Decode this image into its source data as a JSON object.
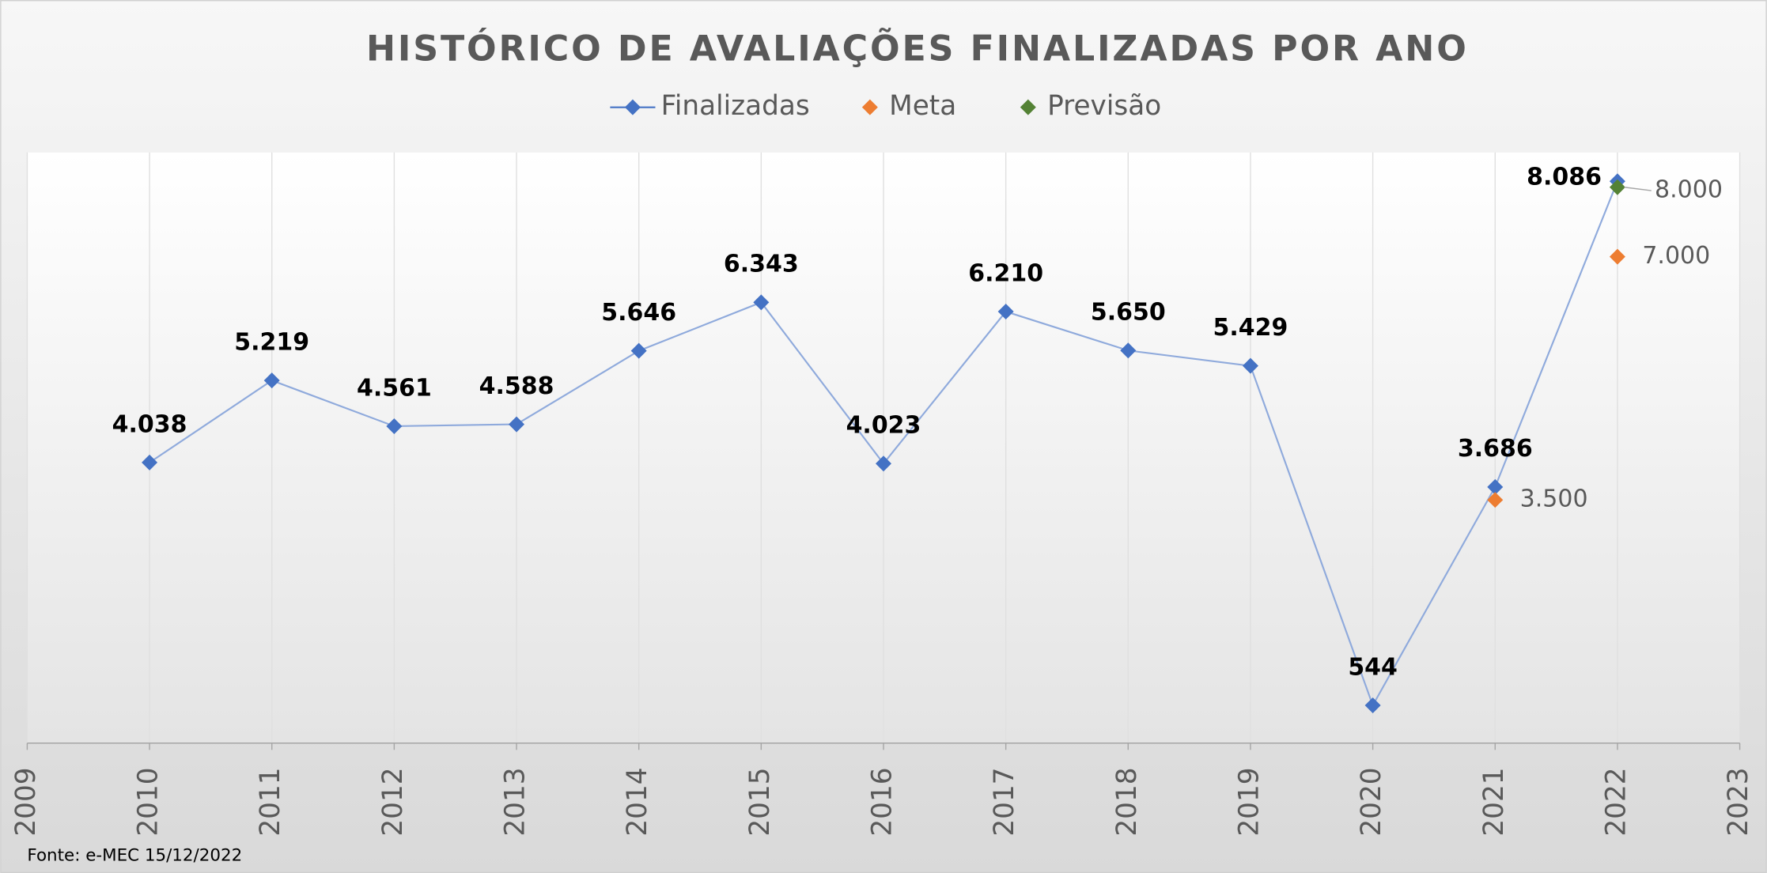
{
  "chart_data": {
    "type": "line",
    "title": "HISTÓRICO DE AVALIAÇÕES FINALIZADAS POR ANO",
    "source": "Fonte: e-MEC 15/12/2022",
    "xlim": [
      2009,
      2023
    ],
    "xticks": [
      2009,
      2010,
      2011,
      2012,
      2013,
      2014,
      2015,
      2016,
      2017,
      2018,
      2019,
      2020,
      2021,
      2022,
      2023
    ],
    "ylim": [
      0,
      8500
    ],
    "grid": true,
    "legend": "top",
    "series": [
      {
        "name": "Finalizadas",
        "color": "#4472c4",
        "x": [
          2010,
          2011,
          2012,
          2013,
          2014,
          2015,
          2016,
          2017,
          2018,
          2019,
          2020,
          2021,
          2022
        ],
        "values": [
          4038,
          5219,
          4561,
          4588,
          5646,
          6343,
          4023,
          6210,
          5650,
          5429,
          544,
          3686,
          8086
        ],
        "value_labels": [
          "4.038",
          "5.219",
          "4.561",
          "4.588",
          "5.646",
          "6.343",
          "4.023",
          "6.210",
          "5.650",
          "5.429",
          "544",
          "3.686",
          "8.086"
        ]
      },
      {
        "name": "Meta",
        "color": "#ed7d31",
        "x": [
          2021,
          2022
        ],
        "values": [
          3500,
          7000
        ],
        "value_labels": [
          "3.500",
          "7.000"
        ]
      },
      {
        "name": "Previsão",
        "color": "#548235",
        "x": [
          2022
        ],
        "values": [
          8000
        ],
        "value_labels": [
          "8.000"
        ]
      }
    ]
  }
}
